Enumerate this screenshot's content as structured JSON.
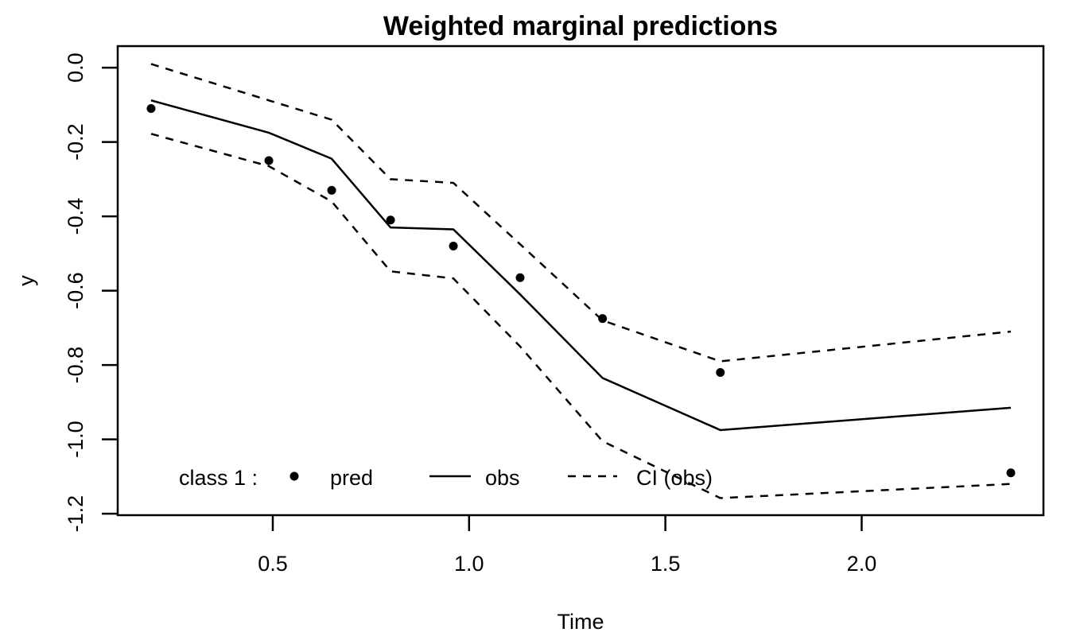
{
  "title": "Weighted marginal predictions",
  "chart_data": {
    "type": "line",
    "title": "Weighted marginal predictions",
    "xlabel": "Time",
    "ylabel": "y",
    "xlim": [
      0.105,
      2.463
    ],
    "ylim": [
      -1.204,
      0.058
    ],
    "grid": false,
    "x_ticks": [
      0.5,
      1.0,
      1.5,
      2.0
    ],
    "x_tick_labels": [
      "0.5",
      "1.0",
      "1.5",
      "2.0"
    ],
    "y_ticks": [
      0.0,
      -0.2,
      -0.4,
      -0.6,
      -0.8,
      -1.0,
      -1.2
    ],
    "y_tick_labels": [
      "0.0",
      "-0.2",
      "-0.4",
      "-0.6",
      "-0.8",
      "-1.0",
      "-1.2"
    ],
    "x": [
      0.19,
      0.49,
      0.65,
      0.8,
      0.96,
      1.13,
      1.34,
      1.64,
      2.38
    ],
    "series": [
      {
        "name": "pred",
        "style": "points",
        "marker": "filled-circle",
        "values": [
          -0.11,
          -0.25,
          -0.33,
          -0.41,
          -0.48,
          -0.565,
          -0.675,
          -0.82,
          -1.09
        ]
      },
      {
        "name": "obs",
        "style": "solid-line",
        "values": [
          -0.088,
          -0.175,
          -0.245,
          -0.43,
          -0.435,
          -0.61,
          -0.835,
          -0.975,
          -0.915
        ]
      },
      {
        "name": "CI (obs) upper",
        "style": "dashed-line",
        "values": [
          0.01,
          -0.088,
          -0.14,
          -0.3,
          -0.31,
          -0.475,
          -0.68,
          -0.79,
          -0.71
        ]
      },
      {
        "name": "CI (obs) lower",
        "style": "dashed-line",
        "values": [
          -0.178,
          -0.265,
          -0.36,
          -0.548,
          -0.567,
          -0.75,
          -1.005,
          -1.158,
          -1.12
        ]
      }
    ],
    "legend": {
      "position": "bottom-left-inside",
      "class_label": "class 1 :",
      "items": [
        {
          "label": "pred",
          "sample": "point"
        },
        {
          "label": "obs",
          "sample": "solid-line"
        },
        {
          "label": "CI (obs)",
          "sample": "dashed-line"
        }
      ]
    },
    "colors": {
      "foreground": "#000000",
      "background": "#ffffff"
    }
  }
}
